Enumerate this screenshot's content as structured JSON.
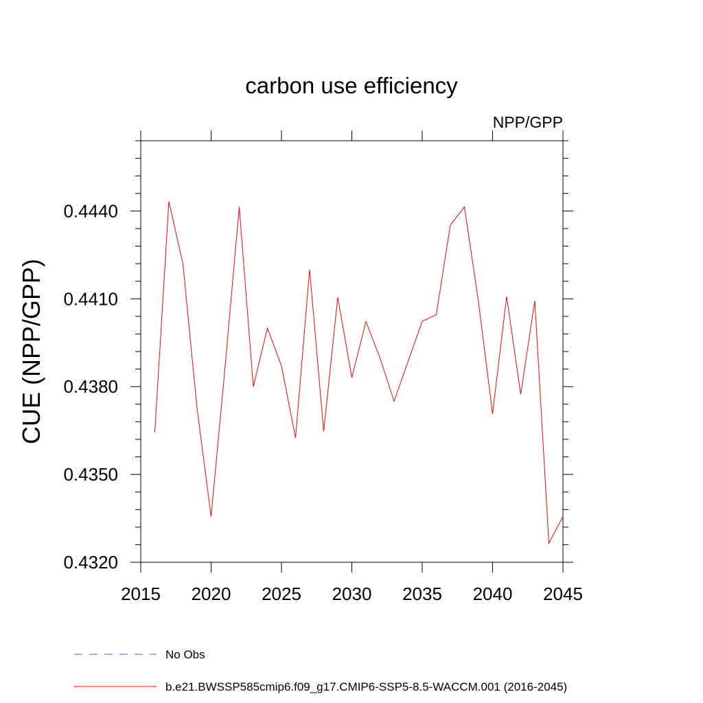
{
  "chart_data": {
    "type": "line",
    "title": "carbon use efficiency",
    "subtitle": "NPP/GPP",
    "xlabel": "",
    "ylabel": "CUE  (NPP/GPP)",
    "xlim": [
      2015,
      2045
    ],
    "ylim": [
      0.432,
      0.4464
    ],
    "x_ticks": [
      2015,
      2020,
      2025,
      2030,
      2035,
      2040,
      2045
    ],
    "x_tick_labels": [
      "2015",
      "2020",
      "2025",
      "2030",
      "2035",
      "2040",
      "2045"
    ],
    "y_ticks": [
      0.432,
      0.435,
      0.438,
      0.441,
      0.444
    ],
    "y_tick_labels": [
      "0.4320",
      "0.4350",
      "0.4380",
      "0.4410",
      "0.4440"
    ],
    "series": [
      {
        "name": "b.e21.BWSSP585cmip6.f09_g17.CMIP6-SSP5-8.5-WACCM.001 (2016-2045)",
        "color": "#ff0000",
        "x": [
          2016,
          2017,
          2018,
          2019,
          2020,
          2021,
          2022,
          2023,
          2024,
          2025,
          2026,
          2027,
          2028,
          2029,
          2030,
          2031,
          2032,
          2033,
          2034,
          2035,
          2036,
          2037,
          2038,
          2039,
          2040,
          2041,
          2042,
          2043,
          2044,
          2045
        ],
        "values": [
          0.43644,
          0.44433,
          0.44219,
          0.43727,
          0.43356,
          0.43871,
          0.44414,
          0.438,
          0.44,
          0.43871,
          0.43625,
          0.442,
          0.43647,
          0.44105,
          0.43831,
          0.44022,
          0.43898,
          0.4375,
          0.43887,
          0.44023,
          0.44046,
          0.44352,
          0.44414,
          0.44089,
          0.43707,
          0.44108,
          0.43774,
          0.44093,
          0.43265,
          0.43356
        ]
      }
    ],
    "legend": [
      {
        "label": "No Obs",
        "color": "#5a5ad0",
        "style": "dashed"
      },
      {
        "label": "b.e21.BWSSP585cmip6.f09_g17.CMIP6-SSP5-8.5-WACCM.001 (2016-2045)",
        "color": "#ff0000",
        "style": "solid"
      }
    ]
  }
}
